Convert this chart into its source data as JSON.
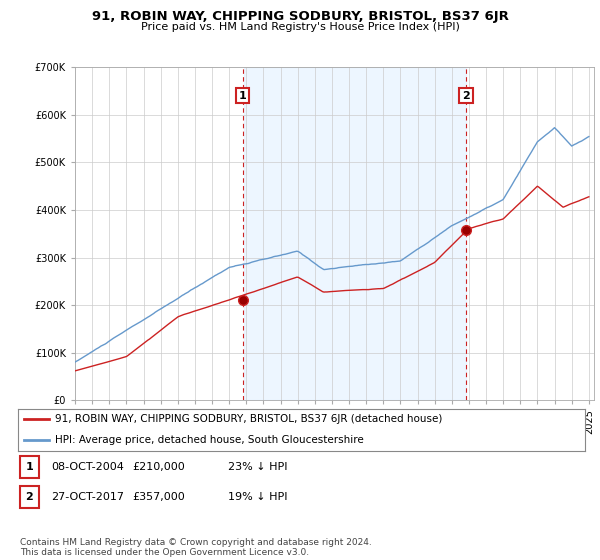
{
  "title": "91, ROBIN WAY, CHIPPING SODBURY, BRISTOL, BS37 6JR",
  "subtitle": "Price paid vs. HM Land Registry's House Price Index (HPI)",
  "hpi_color": "#6699cc",
  "hpi_fill_color": "#ddeeff",
  "price_color": "#cc2222",
  "ylim": [
    0,
    700000
  ],
  "yticks": [
    0,
    100000,
    200000,
    300000,
    400000,
    500000,
    600000,
    700000
  ],
  "sale1_date": 2004.79,
  "sale1_price": 210000,
  "sale2_date": 2017.82,
  "sale2_price": 357000,
  "annotation_box_color": "#cc2222",
  "legend_label_price": "91, ROBIN WAY, CHIPPING SODBURY, BRISTOL, BS37 6JR (detached house)",
  "legend_label_hpi": "HPI: Average price, detached house, South Gloucestershire",
  "table_row1": [
    "1",
    "08-OCT-2004",
    "£210,000",
    "23% ↓ HPI"
  ],
  "table_row2": [
    "2",
    "27-OCT-2017",
    "£357,000",
    "19% ↓ HPI"
  ],
  "footer_line1": "Contains HM Land Registry data © Crown copyright and database right 2024.",
  "footer_line2": "This data is licensed under the Open Government Licence v3.0.",
  "background_color": "#ffffff",
  "grid_color": "#cccccc"
}
